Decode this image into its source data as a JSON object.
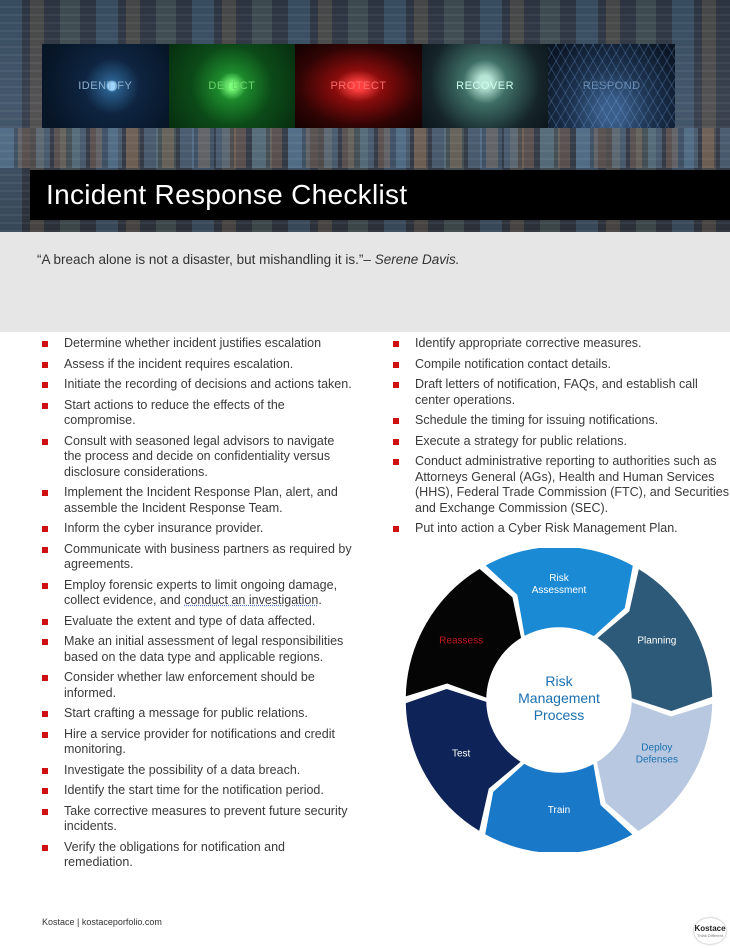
{
  "header": {
    "tiles": [
      "IDENTIFY",
      "DETECT",
      "PROTECT",
      "RECOVER",
      "RESPOND"
    ],
    "title": "Incident Response Checklist"
  },
  "quote": {
    "text": "“A breach alone is not a disaster, but mishandling it is.”– ",
    "author": "Serene Davis."
  },
  "checklist_left": [
    "Determine whether incident justifies escalation",
    "Assess if the incident requires escalation.",
    "Initiate the recording of decisions and actions taken.",
    "Start actions to reduce the effects of the compromise.",
    "Consult with seasoned legal advisors to navigate the process and decide on confidentiality versus disclosure considerations.",
    "Implement the Incident Response Plan, alert, and assemble the Incident Response Team.",
    "Inform the cyber insurance provider.",
    "Communicate with business partners as required by agreements.",
    "Employ forensic experts to limit ongoing damage, collect evidence, and conduct an investigation.",
    "Evaluate the extent and type of data affected.",
    "Make an initial assessment of legal responsibilities based on the data type and applicable regions.",
    "Consider whether law enforcement should be informed.",
    "Start crafting a message for public relations.",
    "Hire a service provider for notifications and credit monitoring.",
    "Investigate the possibility of a data breach.",
    "Identify the start time for the notification period.",
    "Take corrective measures to prevent future security incidents.",
    "Verify the obligations for notification and remediation."
  ],
  "checklist_right": [
    "Identify appropriate corrective measures.",
    "Compile notification contact details.",
    "Draft letters of notification, FAQs, and establish call center operations.",
    "Schedule the timing for issuing notifications.",
    "Execute a strategy for public relations.",
    "Conduct administrative reporting to authorities such as Attorneys General (AGs), Health and Human Services (HHS), Federal Trade Commission (FTC), and Securities and Exchange Commission (SEC).",
    "Put into action a Cyber Risk Management Plan."
  ],
  "cycle": {
    "center_lines": [
      "Risk",
      "Management",
      "Process"
    ],
    "segments": [
      {
        "label": "Risk Assessment",
        "color": "#1a8ad4",
        "text_color": "#ffffff"
      },
      {
        "label": "Planning",
        "color": "#2e5a7a",
        "text_color": "#ffffff"
      },
      {
        "label": "Deploy Defenses",
        "color": "#b8c8e0",
        "text_color": "#1a70b0"
      },
      {
        "label": "Train",
        "color": "#1a78c8",
        "text_color": "#ffffff"
      },
      {
        "label": "Test",
        "color": "#0e2458",
        "text_color": "#ffffff"
      },
      {
        "label": "Reassess",
        "color": "#050505",
        "text_color": "#c81818"
      }
    ],
    "center_color": "#1a70b0"
  },
  "footer": {
    "text": "Kostace | kostaceporfolio.com",
    "logo_name": "Kostace",
    "logo_sub": "Think Different"
  }
}
